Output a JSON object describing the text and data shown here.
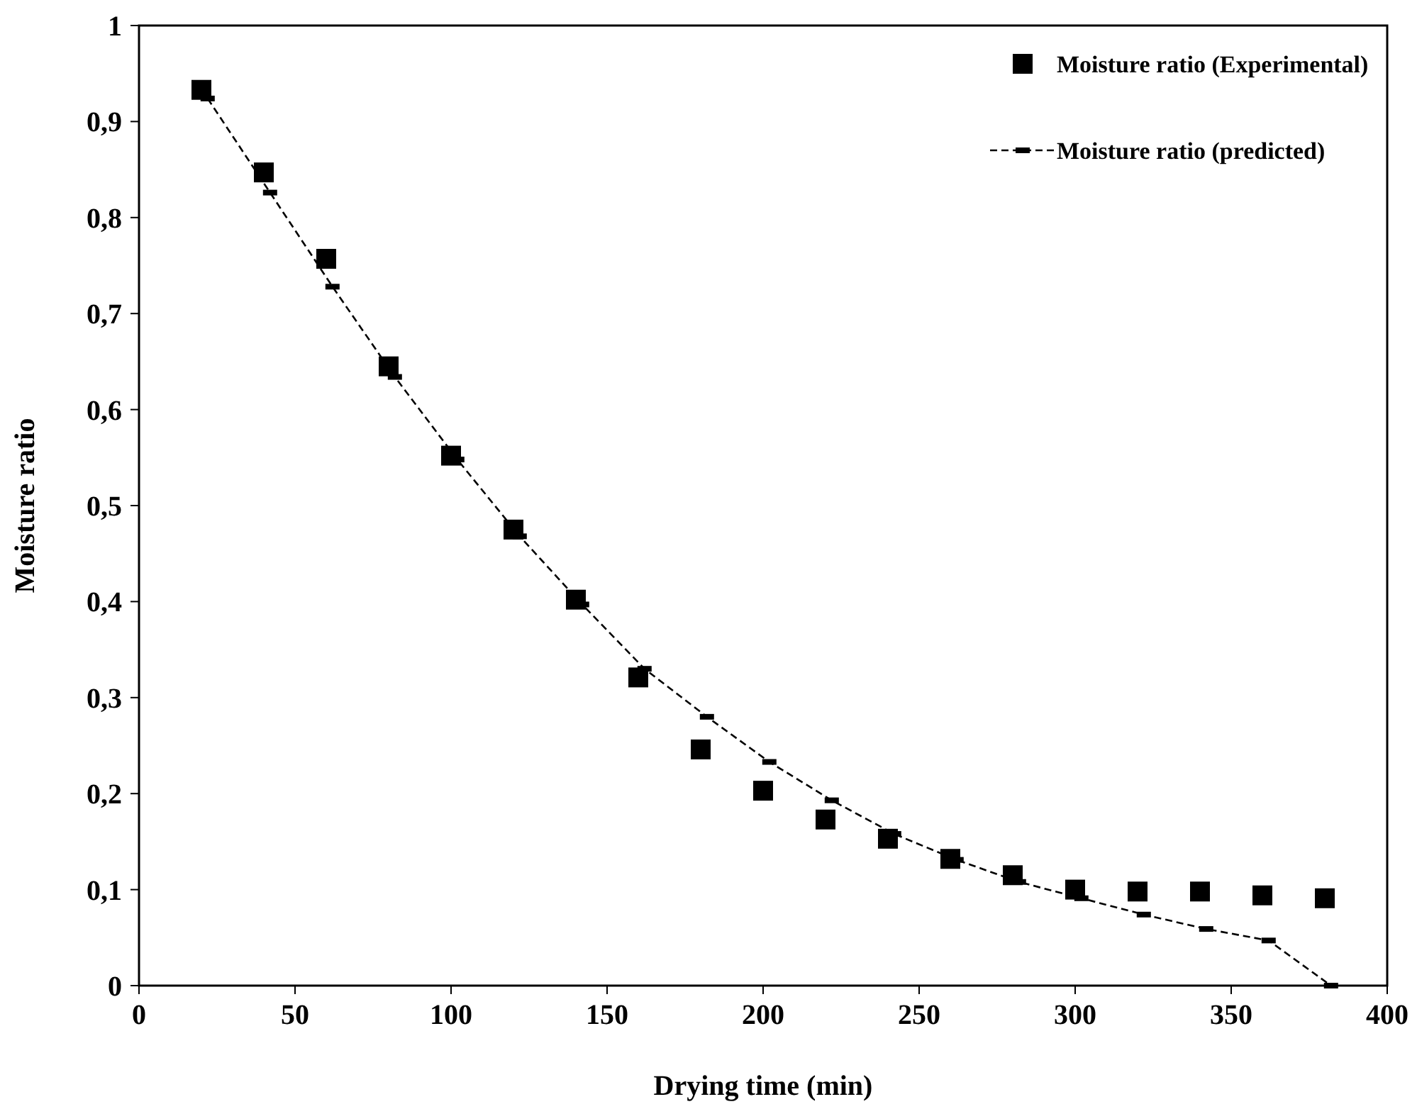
{
  "chart_data": {
    "type": "scatter",
    "xlabel": "Drying time (min)",
    "ylabel": "Moisture ratio",
    "xlim": [
      0,
      400
    ],
    "xticks": [
      0,
      50,
      100,
      150,
      200,
      250,
      300,
      350,
      400
    ],
    "ylim": [
      0,
      1
    ],
    "yticks": [
      0,
      {
        "value": 0.1,
        "label": "0,1"
      },
      {
        "value": 0.2,
        "label": "0,2"
      },
      {
        "value": 0.3,
        "label": "0,3"
      },
      {
        "value": 0.4,
        "label": "0,4"
      },
      {
        "value": 0.5,
        "label": "0,5"
      },
      {
        "value": 0.6,
        "label": "0,6"
      },
      {
        "value": 0.7,
        "label": "0,7"
      },
      {
        "value": 0.8,
        "label": "0,8"
      },
      {
        "value": 0.9,
        "label": "0,9"
      },
      1
    ],
    "grid": false,
    "legend": "top right",
    "series": [
      {
        "name": "Moisture ratio (Experimental)",
        "type": "scatter",
        "marker": "square",
        "color": "#000000",
        "x": [
          20,
          40,
          60,
          80,
          100,
          120,
          140,
          160,
          180,
          200,
          220,
          240,
          260,
          280,
          300,
          320,
          340,
          360,
          380
        ],
        "values": [
          0.933,
          0.847,
          0.757,
          0.645,
          0.552,
          0.475,
          0.402,
          0.321,
          0.246,
          0.203,
          0.173,
          0.153,
          0.132,
          0.115,
          0.1,
          0.098,
          0.098,
          0.094,
          0.091
        ]
      },
      {
        "name": "Moisture ratio (predicted)",
        "type": "line",
        "marker": "square",
        "line_style": "dashed",
        "color": "#000000",
        "x": [
          22,
          42,
          62,
          82,
          102,
          122,
          142,
          162,
          182,
          202,
          222,
          242,
          262,
          282,
          302,
          322,
          342,
          362,
          382
        ],
        "values": [
          0.924,
          0.826,
          0.728,
          0.634,
          0.548,
          0.468,
          0.397,
          0.33,
          0.28,
          0.233,
          0.193,
          0.158,
          0.131,
          0.108,
          0.091,
          0.074,
          0.059,
          0.047,
          0.0
        ]
      }
    ]
  }
}
